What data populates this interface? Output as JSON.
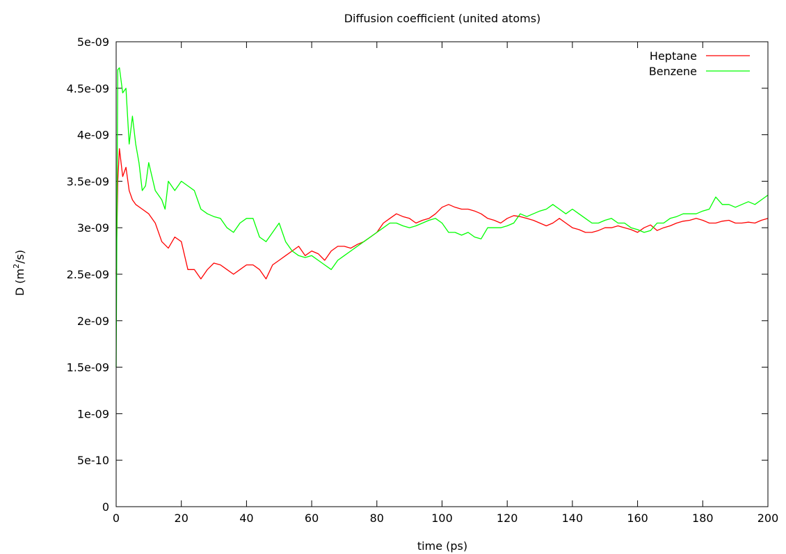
{
  "chart_data": {
    "type": "line",
    "title": "Diffusion coefficient (united atoms)",
    "xlabel": "time (ps)",
    "ylabel_prefix": "D (m",
    "ylabel_sup": "2",
    "ylabel_suffix": "/s)",
    "xlim": [
      0,
      200
    ],
    "ylim": [
      0,
      5e-09
    ],
    "x_ticks": [
      "0",
      "20",
      "40",
      "60",
      "80",
      "100",
      "120",
      "140",
      "160",
      "180",
      "200"
    ],
    "y_ticks": [
      "0",
      "5e-10",
      "1e-09",
      "1.5e-09",
      "2e-09",
      "2.5e-09",
      "3e-09",
      "3.5e-09",
      "4e-09",
      "4.5e-09",
      "5e-09"
    ],
    "grid": false,
    "legend_position": "top-right",
    "series": [
      {
        "name": "Heptane",
        "color": "#ff0000",
        "points": [
          [
            0,
            2.5e-09
          ],
          [
            0.5,
            3.5e-09
          ],
          [
            1,
            3.85e-09
          ],
          [
            2,
            3.55e-09
          ],
          [
            3,
            3.65e-09
          ],
          [
            4,
            3.4e-09
          ],
          [
            5,
            3.3e-09
          ],
          [
            6,
            3.25e-09
          ],
          [
            8,
            3.2e-09
          ],
          [
            10,
            3.15e-09
          ],
          [
            12,
            3.05e-09
          ],
          [
            14,
            2.85e-09
          ],
          [
            16,
            2.78e-09
          ],
          [
            18,
            2.9e-09
          ],
          [
            20,
            2.85e-09
          ],
          [
            22,
            2.55e-09
          ],
          [
            24,
            2.55e-09
          ],
          [
            26,
            2.45e-09
          ],
          [
            28,
            2.55e-09
          ],
          [
            30,
            2.62e-09
          ],
          [
            32,
            2.6e-09
          ],
          [
            34,
            2.55e-09
          ],
          [
            36,
            2.5e-09
          ],
          [
            38,
            2.55e-09
          ],
          [
            40,
            2.6e-09
          ],
          [
            42,
            2.6e-09
          ],
          [
            44,
            2.55e-09
          ],
          [
            46,
            2.45e-09
          ],
          [
            48,
            2.6e-09
          ],
          [
            50,
            2.65e-09
          ],
          [
            52,
            2.7e-09
          ],
          [
            54,
            2.75e-09
          ],
          [
            56,
            2.8e-09
          ],
          [
            58,
            2.7e-09
          ],
          [
            60,
            2.75e-09
          ],
          [
            62,
            2.72e-09
          ],
          [
            64,
            2.65e-09
          ],
          [
            66,
            2.75e-09
          ],
          [
            68,
            2.8e-09
          ],
          [
            70,
            2.8e-09
          ],
          [
            72,
            2.78e-09
          ],
          [
            74,
            2.82e-09
          ],
          [
            76,
            2.85e-09
          ],
          [
            78,
            2.9e-09
          ],
          [
            80,
            2.95e-09
          ],
          [
            82,
            3.05e-09
          ],
          [
            84,
            3.1e-09
          ],
          [
            86,
            3.15e-09
          ],
          [
            88,
            3.12e-09
          ],
          [
            90,
            3.1e-09
          ],
          [
            92,
            3.05e-09
          ],
          [
            94,
            3.08e-09
          ],
          [
            96,
            3.1e-09
          ],
          [
            98,
            3.15e-09
          ],
          [
            100,
            3.22e-09
          ],
          [
            102,
            3.25e-09
          ],
          [
            104,
            3.22e-09
          ],
          [
            106,
            3.2e-09
          ],
          [
            108,
            3.2e-09
          ],
          [
            110,
            3.18e-09
          ],
          [
            112,
            3.15e-09
          ],
          [
            114,
            3.1e-09
          ],
          [
            116,
            3.08e-09
          ],
          [
            118,
            3.05e-09
          ],
          [
            120,
            3.1e-09
          ],
          [
            122,
            3.13e-09
          ],
          [
            124,
            3.12e-09
          ],
          [
            126,
            3.1e-09
          ],
          [
            128,
            3.08e-09
          ],
          [
            130,
            3.05e-09
          ],
          [
            132,
            3.02e-09
          ],
          [
            134,
            3.05e-09
          ],
          [
            136,
            3.1e-09
          ],
          [
            138,
            3.05e-09
          ],
          [
            140,
            3e-09
          ],
          [
            142,
            2.98e-09
          ],
          [
            144,
            2.95e-09
          ],
          [
            146,
            2.95e-09
          ],
          [
            148,
            2.97e-09
          ],
          [
            150,
            3e-09
          ],
          [
            152,
            3e-09
          ],
          [
            154,
            3.02e-09
          ],
          [
            156,
            3e-09
          ],
          [
            158,
            2.98e-09
          ],
          [
            160,
            2.95e-09
          ],
          [
            162,
            3e-09
          ],
          [
            164,
            3.03e-09
          ],
          [
            166,
            2.97e-09
          ],
          [
            168,
            3e-09
          ],
          [
            170,
            3.02e-09
          ],
          [
            172,
            3.05e-09
          ],
          [
            174,
            3.07e-09
          ],
          [
            176,
            3.08e-09
          ],
          [
            178,
            3.1e-09
          ],
          [
            180,
            3.08e-09
          ],
          [
            182,
            3.05e-09
          ],
          [
            184,
            3.05e-09
          ],
          [
            186,
            3.07e-09
          ],
          [
            188,
            3.08e-09
          ],
          [
            190,
            3.05e-09
          ],
          [
            192,
            3.05e-09
          ],
          [
            194,
            3.06e-09
          ],
          [
            196,
            3.05e-09
          ],
          [
            198,
            3.08e-09
          ],
          [
            200,
            3.1e-09
          ]
        ]
      },
      {
        "name": "Benzene",
        "color": "#00ff00",
        "points": [
          [
            0,
            1.5e-09
          ],
          [
            0.5,
            4.7e-09
          ],
          [
            1,
            4.72e-09
          ],
          [
            2,
            4.45e-09
          ],
          [
            3,
            4.5e-09
          ],
          [
            4,
            3.9e-09
          ],
          [
            5,
            4.2e-09
          ],
          [
            6,
            3.9e-09
          ],
          [
            7,
            3.7e-09
          ],
          [
            8,
            3.4e-09
          ],
          [
            9,
            3.45e-09
          ],
          [
            10,
            3.7e-09
          ],
          [
            12,
            3.4e-09
          ],
          [
            14,
            3.3e-09
          ],
          [
            15,
            3.2e-09
          ],
          [
            16,
            3.5e-09
          ],
          [
            18,
            3.4e-09
          ],
          [
            20,
            3.5e-09
          ],
          [
            22,
            3.45e-09
          ],
          [
            24,
            3.4e-09
          ],
          [
            26,
            3.2e-09
          ],
          [
            28,
            3.15e-09
          ],
          [
            30,
            3.12e-09
          ],
          [
            32,
            3.1e-09
          ],
          [
            34,
            3e-09
          ],
          [
            36,
            2.95e-09
          ],
          [
            38,
            3.05e-09
          ],
          [
            40,
            3.1e-09
          ],
          [
            42,
            3.1e-09
          ],
          [
            44,
            2.9e-09
          ],
          [
            46,
            2.85e-09
          ],
          [
            48,
            2.95e-09
          ],
          [
            50,
            3.05e-09
          ],
          [
            52,
            2.85e-09
          ],
          [
            54,
            2.75e-09
          ],
          [
            56,
            2.7e-09
          ],
          [
            58,
            2.68e-09
          ],
          [
            60,
            2.7e-09
          ],
          [
            62,
            2.65e-09
          ],
          [
            64,
            2.6e-09
          ],
          [
            66,
            2.55e-09
          ],
          [
            68,
            2.65e-09
          ],
          [
            70,
            2.7e-09
          ],
          [
            72,
            2.75e-09
          ],
          [
            74,
            2.8e-09
          ],
          [
            76,
            2.85e-09
          ],
          [
            78,
            2.9e-09
          ],
          [
            80,
            2.95e-09
          ],
          [
            82,
            3e-09
          ],
          [
            84,
            3.05e-09
          ],
          [
            86,
            3.05e-09
          ],
          [
            88,
            3.02e-09
          ],
          [
            90,
            3e-09
          ],
          [
            92,
            3.02e-09
          ],
          [
            94,
            3.05e-09
          ],
          [
            96,
            3.08e-09
          ],
          [
            98,
            3.1e-09
          ],
          [
            100,
            3.05e-09
          ],
          [
            102,
            2.95e-09
          ],
          [
            104,
            2.95e-09
          ],
          [
            106,
            2.92e-09
          ],
          [
            108,
            2.95e-09
          ],
          [
            110,
            2.9e-09
          ],
          [
            112,
            2.88e-09
          ],
          [
            114,
            3e-09
          ],
          [
            116,
            3e-09
          ],
          [
            118,
            3e-09
          ],
          [
            120,
            3.02e-09
          ],
          [
            122,
            3.05e-09
          ],
          [
            124,
            3.15e-09
          ],
          [
            126,
            3.12e-09
          ],
          [
            128,
            3.15e-09
          ],
          [
            130,
            3.18e-09
          ],
          [
            132,
            3.2e-09
          ],
          [
            134,
            3.25e-09
          ],
          [
            136,
            3.2e-09
          ],
          [
            138,
            3.15e-09
          ],
          [
            140,
            3.2e-09
          ],
          [
            142,
            3.15e-09
          ],
          [
            144,
            3.1e-09
          ],
          [
            146,
            3.05e-09
          ],
          [
            148,
            3.05e-09
          ],
          [
            150,
            3.08e-09
          ],
          [
            152,
            3.1e-09
          ],
          [
            154,
            3.05e-09
          ],
          [
            156,
            3.05e-09
          ],
          [
            158,
            3e-09
          ],
          [
            160,
            2.98e-09
          ],
          [
            162,
            2.95e-09
          ],
          [
            164,
            2.97e-09
          ],
          [
            166,
            3.05e-09
          ],
          [
            168,
            3.05e-09
          ],
          [
            170,
            3.1e-09
          ],
          [
            172,
            3.12e-09
          ],
          [
            174,
            3.15e-09
          ],
          [
            176,
            3.15e-09
          ],
          [
            178,
            3.15e-09
          ],
          [
            180,
            3.18e-09
          ],
          [
            182,
            3.2e-09
          ],
          [
            184,
            3.33e-09
          ],
          [
            186,
            3.25e-09
          ],
          [
            188,
            3.25e-09
          ],
          [
            190,
            3.22e-09
          ],
          [
            192,
            3.25e-09
          ],
          [
            194,
            3.28e-09
          ],
          [
            196,
            3.25e-09
          ],
          [
            198,
            3.3e-09
          ],
          [
            200,
            3.35e-09
          ]
        ]
      }
    ]
  }
}
